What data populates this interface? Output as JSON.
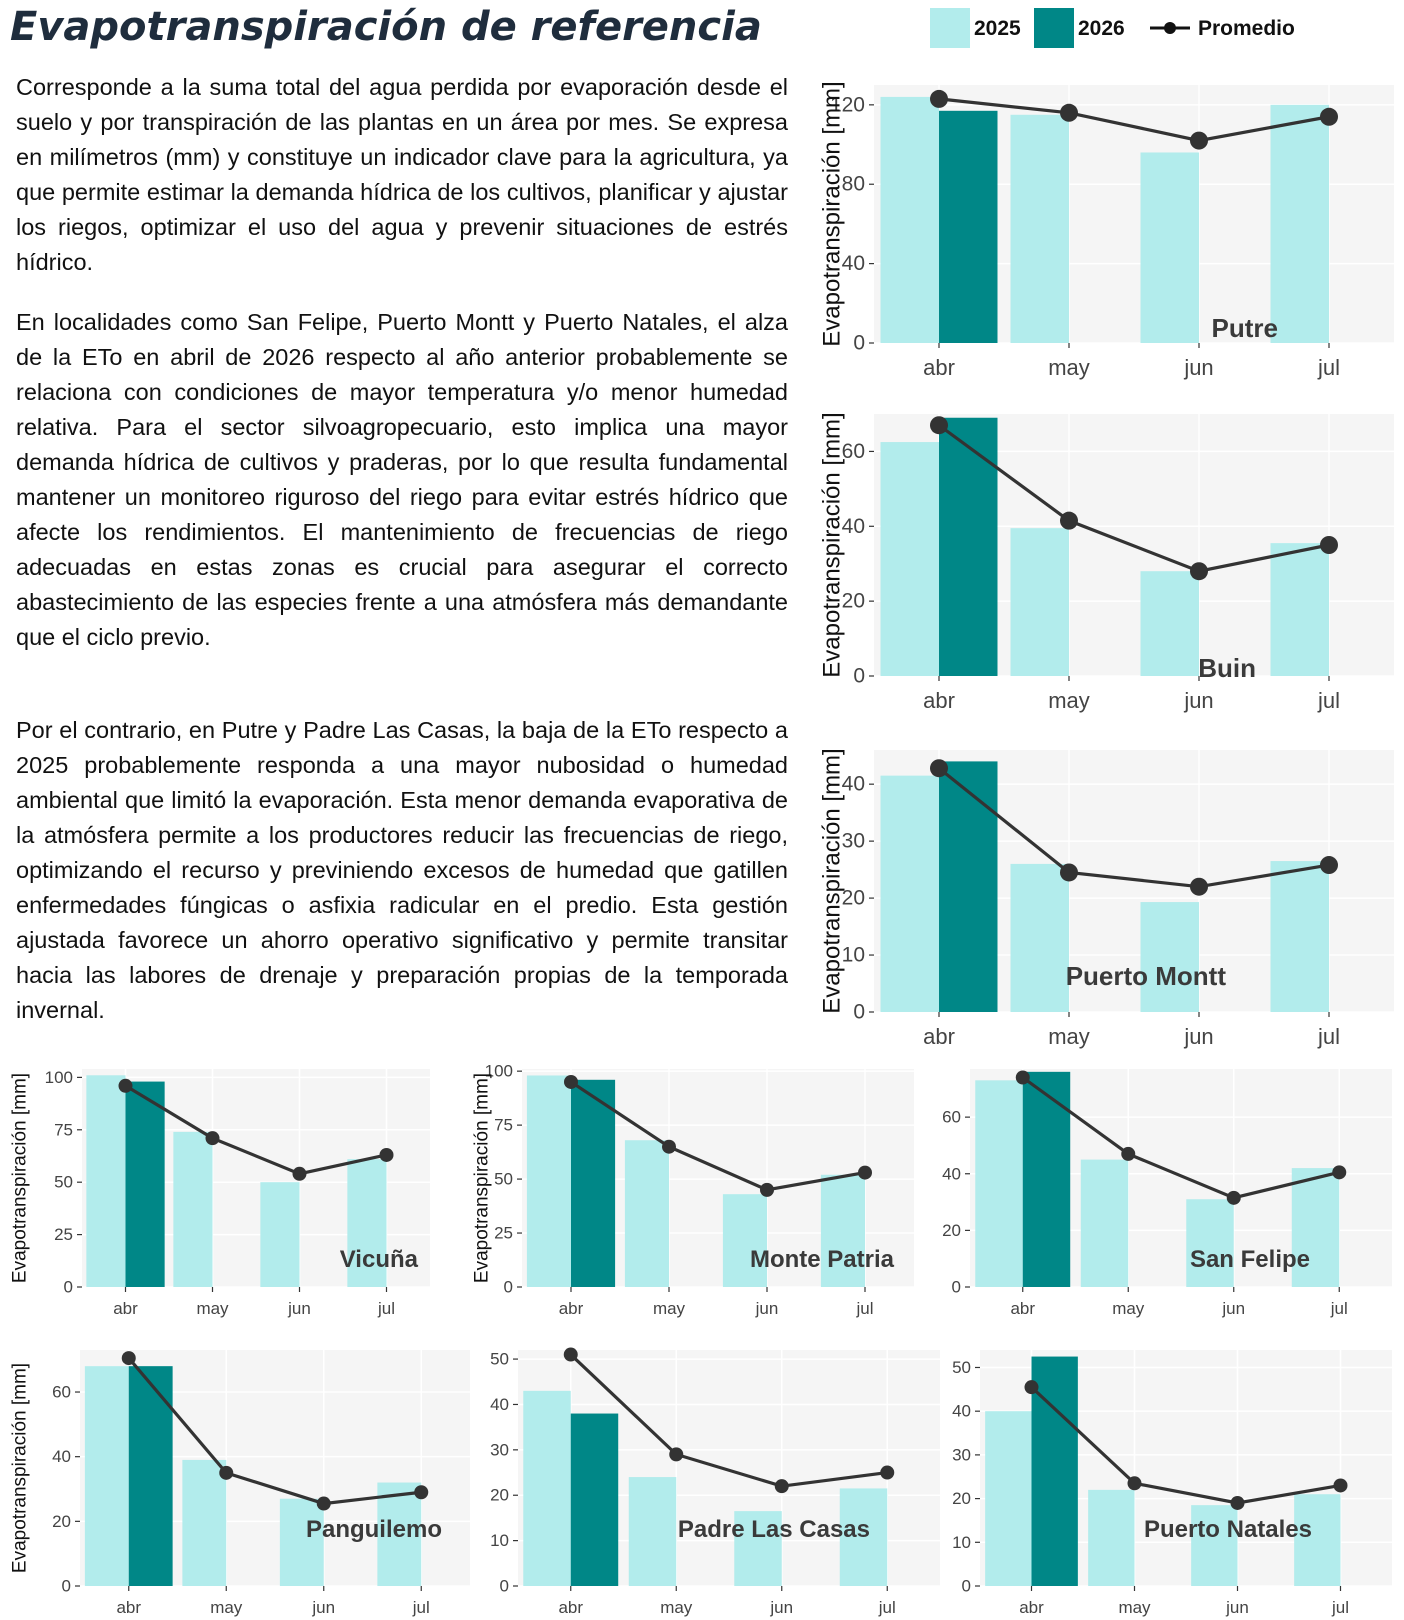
{
  "title": "Evapotranspiración de referencia",
  "legend": {
    "y2025": "2025",
    "y2026": "2026",
    "avg": "Promedio"
  },
  "colors": {
    "c2025": "#b2ecec",
    "c2026": "#008787",
    "avg": "#333333",
    "panel": "#f5f5f5",
    "grid": "#ffffff"
  },
  "paragraphs": [
    "Corresponde a la suma total del agua perdida por evaporación desde el suelo y por transpiración de las plantas en un área por mes. Se expresa en milímetros (mm) y constituye un indicador clave para la agricultura, ya que permite estimar la demanda hídrica de los cultivos, planificar y ajustar los riegos, optimizar el uso del agua y prevenir situaciones de estrés hídrico.",
    "En localidades como San Felipe, Puerto Montt y Puerto Natales, el alza de la ETo en abril de 2026 respecto al año anterior probablemente se relaciona con condiciones de mayor temperatura y/o menor humedad relativa. Para el sector silvoagropecuario, esto implica una mayor demanda hídrica de cultivos y praderas, por lo que resulta fundamental mantener un monitoreo riguroso del riego para evitar estrés hídrico que afecte los rendimientos. El mantenimiento de frecuencias de riego adecuadas en estas zonas es crucial para asegurar el correcto abastecimiento de las especies frente a una atmósfera más demandante que el ciclo previo.",
    "Por el contrario, en Putre y Padre Las Casas, la baja de la ETo respecto a 2025 probablemente responda a una mayor nubosidad o humedad ambiental que limitó la evaporación. Esta menor demanda evaporativa de la atmósfera permite a los productores reducir las frecuencias de riego, optimizando el recurso y previniendo excesos de humedad que gatillen enfermedades fúngicas o asfixia radicular en el predio. Esta gestión ajustada favorece un ahorro operativo significativo y permite transitar hacia las labores de drenaje y preparación propias de la temporada invernal."
  ],
  "chart_data": [
    {
      "type": "bar",
      "station": "Putre",
      "categories": [
        "abr",
        "may",
        "jun",
        "jul"
      ],
      "ylabel": "Evapotranspiración [mm]",
      "ylim": [
        0,
        130
      ],
      "yticks": [
        0,
        40,
        80,
        120
      ],
      "series": [
        {
          "name": "2025",
          "values": [
            124,
            115,
            96,
            120
          ]
        },
        {
          "name": "2026",
          "values": [
            117,
            null,
            null,
            null
          ]
        },
        {
          "name": "Promedio",
          "type": "line",
          "values": [
            123,
            116,
            102,
            114
          ]
        }
      ]
    },
    {
      "type": "bar",
      "station": "Buin",
      "categories": [
        "abr",
        "may",
        "jun",
        "jul"
      ],
      "ylabel": "Evapotranspiración [mm]",
      "ylim": [
        0,
        70
      ],
      "yticks": [
        0,
        20,
        40,
        60
      ],
      "series": [
        {
          "name": "2025",
          "values": [
            62.5,
            39.5,
            28,
            35.5
          ]
        },
        {
          "name": "2026",
          "values": [
            69,
            null,
            null,
            null
          ]
        },
        {
          "name": "Promedio",
          "type": "line",
          "values": [
            67,
            41.5,
            28,
            35
          ]
        }
      ]
    },
    {
      "type": "bar",
      "station": "Puerto Montt",
      "categories": [
        "abr",
        "may",
        "jun",
        "jul"
      ],
      "ylabel": "Evapotranspiración [mm]",
      "ylim": [
        0,
        46
      ],
      "yticks": [
        0,
        10,
        20,
        30,
        40
      ],
      "series": [
        {
          "name": "2025",
          "values": [
            41.5,
            26,
            19.3,
            26.5
          ]
        },
        {
          "name": "2026",
          "values": [
            44,
            null,
            null,
            null
          ]
        },
        {
          "name": "Promedio",
          "type": "line",
          "values": [
            42.8,
            24.5,
            22,
            25.8
          ]
        }
      ]
    },
    {
      "type": "bar",
      "station": "Vicuña",
      "categories": [
        "abr",
        "may",
        "jun",
        "jul"
      ],
      "ylabel": "Evapotranspiración [mm]",
      "ylim": [
        0,
        104
      ],
      "yticks": [
        0,
        25,
        50,
        75,
        100
      ],
      "series": [
        {
          "name": "2025",
          "values": [
            101,
            74,
            50,
            61
          ]
        },
        {
          "name": "2026",
          "values": [
            98,
            null,
            null,
            null
          ]
        },
        {
          "name": "Promedio",
          "type": "line",
          "values": [
            96,
            71,
            54,
            63
          ]
        }
      ]
    },
    {
      "type": "bar",
      "station": "Monte Patria",
      "categories": [
        "abr",
        "may",
        "jun",
        "jul"
      ],
      "ylabel": "Evapotranspiración [mm]",
      "ylim": [
        0,
        101
      ],
      "yticks": [
        0,
        25,
        50,
        75,
        100
      ],
      "series": [
        {
          "name": "2025",
          "values": [
            98,
            68,
            43,
            52
          ]
        },
        {
          "name": "2026",
          "values": [
            96,
            null,
            null,
            null
          ]
        },
        {
          "name": "Promedio",
          "type": "line",
          "values": [
            95,
            65,
            45,
            53
          ]
        }
      ]
    },
    {
      "type": "bar",
      "station": "San Felipe",
      "categories": [
        "abr",
        "may",
        "jun",
        "jul"
      ],
      "ylabel": "",
      "ylim": [
        0,
        77
      ],
      "yticks": [
        0,
        20,
        40,
        60
      ],
      "series": [
        {
          "name": "2025",
          "values": [
            73,
            45,
            31,
            42
          ]
        },
        {
          "name": "2026",
          "values": [
            76,
            null,
            null,
            null
          ]
        },
        {
          "name": "Promedio",
          "type": "line",
          "values": [
            74,
            47,
            31.5,
            40.5
          ]
        }
      ]
    },
    {
      "type": "bar",
      "station": "Panguilemo",
      "categories": [
        "abr",
        "may",
        "jun",
        "jul"
      ],
      "ylabel": "Evapotranspiración [mm]",
      "ylim": [
        0,
        73
      ],
      "yticks": [
        0,
        20,
        40,
        60
      ],
      "series": [
        {
          "name": "2025",
          "values": [
            68,
            39,
            27,
            32
          ]
        },
        {
          "name": "2026",
          "values": [
            68,
            null,
            null,
            null
          ]
        },
        {
          "name": "Promedio",
          "type": "line",
          "values": [
            70.5,
            35,
            25.5,
            29
          ]
        }
      ]
    },
    {
      "type": "bar",
      "station": "Padre Las Casas",
      "categories": [
        "abr",
        "may",
        "jun",
        "jul"
      ],
      "ylabel": "",
      "ylim": [
        0,
        52
      ],
      "yticks": [
        0,
        10,
        20,
        30,
        40,
        50
      ],
      "series": [
        {
          "name": "2025",
          "values": [
            43,
            24,
            16.5,
            21.5
          ]
        },
        {
          "name": "2026",
          "values": [
            38,
            null,
            null,
            null
          ]
        },
        {
          "name": "Promedio",
          "type": "line",
          "values": [
            51,
            29,
            22,
            25
          ]
        }
      ]
    },
    {
      "type": "bar",
      "station": "Puerto Natales",
      "categories": [
        "abr",
        "may",
        "jun",
        "jul"
      ],
      "ylabel": "",
      "ylim": [
        0,
        54
      ],
      "yticks": [
        0,
        10,
        20,
        30,
        40,
        50
      ],
      "series": [
        {
          "name": "2025",
          "values": [
            40,
            22,
            18.5,
            21
          ]
        },
        {
          "name": "2026",
          "values": [
            52.5,
            null,
            null,
            null
          ]
        },
        {
          "name": "Promedio",
          "type": "line",
          "values": [
            45.5,
            23.5,
            19,
            23
          ]
        }
      ]
    }
  ]
}
